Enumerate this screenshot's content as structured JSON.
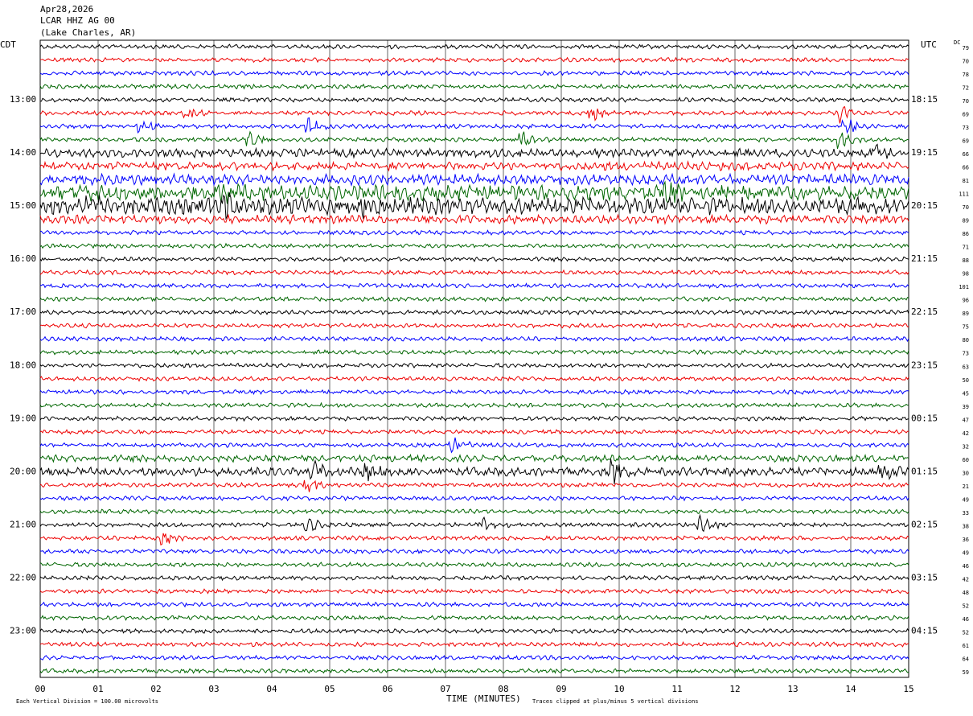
{
  "header": {
    "lines": [
      "Apr28,2026",
      "LCAR HHZ AG 00",
      "(Lake Charles, AR)"
    ]
  },
  "left_label": "CDT",
  "right_label": "UTC",
  "dc_label": "DC",
  "left_times": [
    "13:00",
    "14:00",
    "15:00",
    "16:00",
    "17:00",
    "18:00",
    "19:00",
    "20:00",
    "21:00",
    "22:00",
    "23:00"
  ],
  "right_times": [
    "18:15",
    "19:15",
    "20:15",
    "21:15",
    "22:15",
    "23:15",
    "00:15",
    "01:15",
    "02:15",
    "03:15",
    "04:15"
  ],
  "dc_values": [
    79,
    70,
    78,
    72,
    70,
    69,
    73,
    69,
    66,
    66,
    81,
    111,
    70,
    89,
    86,
    71,
    88,
    98,
    101,
    96,
    89,
    75,
    80,
    73,
    63,
    50,
    45,
    39,
    47,
    42,
    32,
    60,
    30,
    21,
    49,
    33,
    38,
    36,
    49,
    46,
    42,
    48,
    52,
    46,
    52,
    61,
    64,
    59
  ],
  "x_ticks": [
    "00",
    "01",
    "02",
    "03",
    "04",
    "05",
    "06",
    "07",
    "08",
    "09",
    "10",
    "11",
    "12",
    "13",
    "14",
    "15"
  ],
  "footer": {
    "scale": "Each Vertical Division =  100.00 microvolts",
    "axis_title": "TIME (MINUTES)",
    "clip_note": "Traces clipped at plus/minus 5 vertical divisions"
  }
}
